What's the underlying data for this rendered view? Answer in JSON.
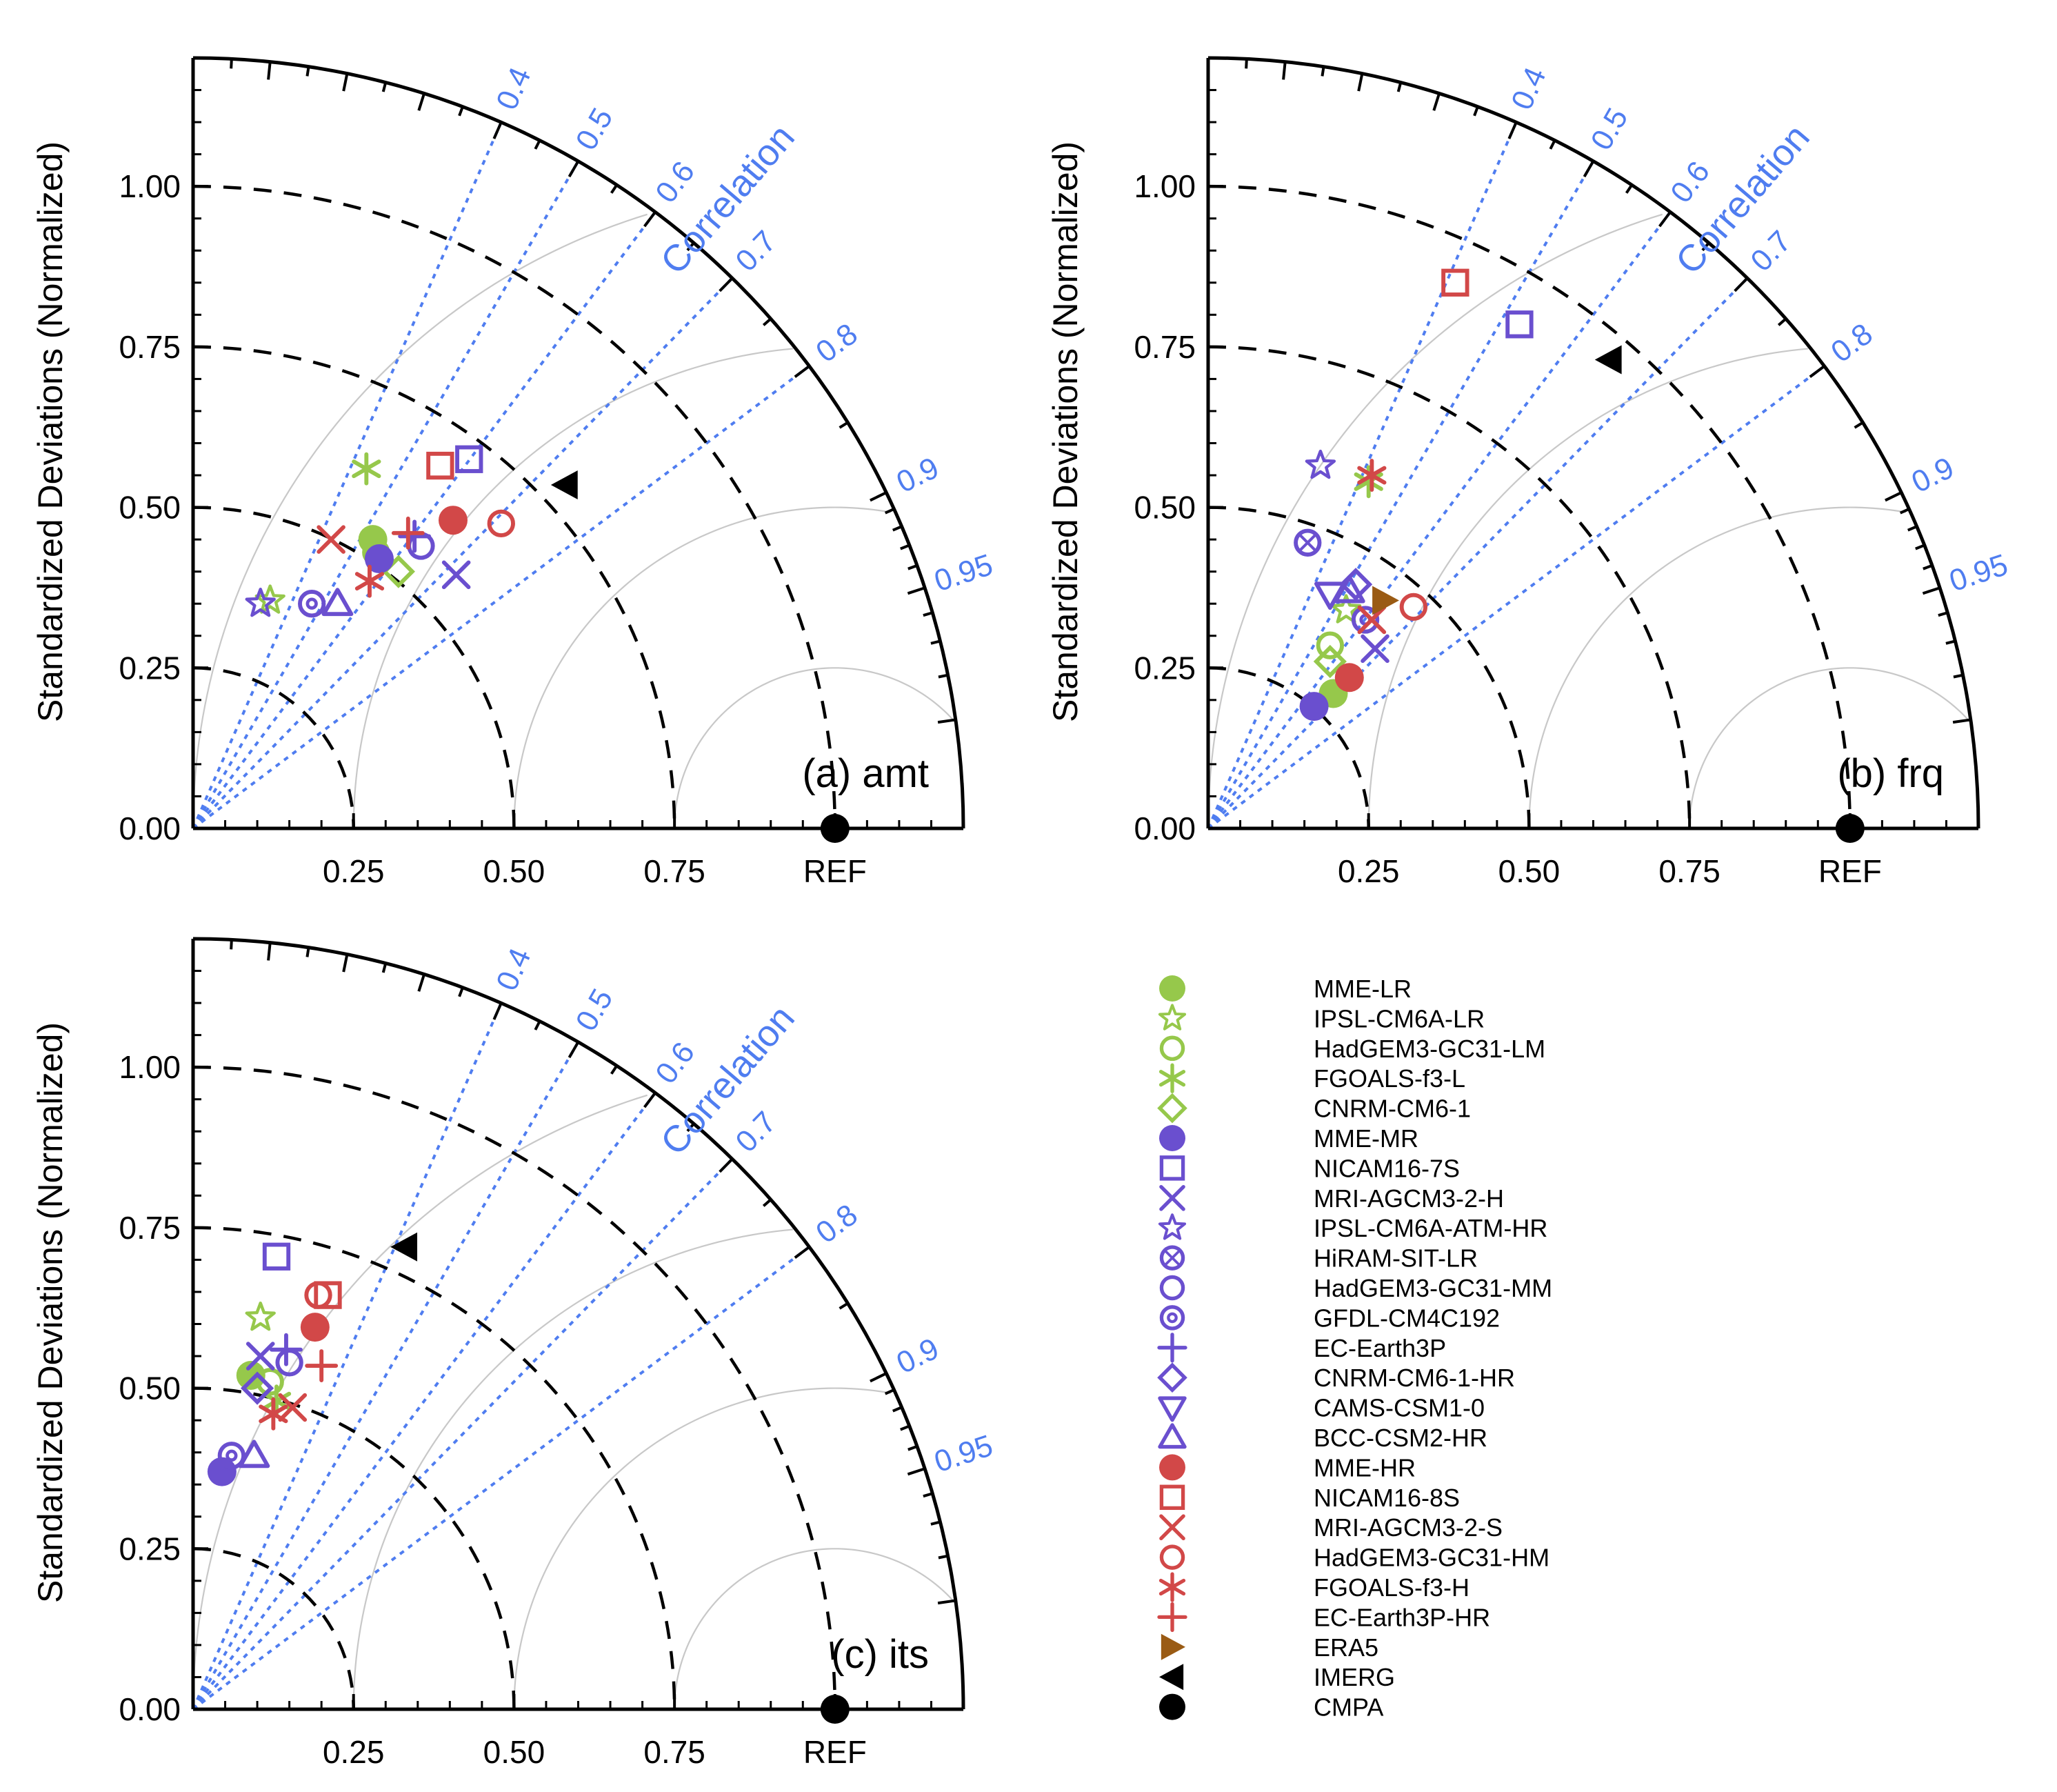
{
  "colors": {
    "green": "#96c84b",
    "purple": "#6a4fcf",
    "red": "#d24848",
    "brown": "#9a5b14",
    "black": "#000000",
    "corr_blue": "#4f7df0",
    "grid_gray": "#c8c8c8"
  },
  "chart_data": [
    {
      "type": "taylor",
      "panel_label": "(a) amt",
      "ylabel": "Standardized Deviations (Normalized)",
      "std_ticks": [
        "0.00",
        "0.25",
        "0.50",
        "0.75",
        "1.00"
      ],
      "x_ticks": [
        "0.25",
        "0.50",
        "0.75",
        "REF"
      ],
      "corr_ticks": [
        "0.4",
        "0.5",
        "0.6",
        "0.7",
        "0.8",
        "0.9",
        "0.95"
      ],
      "corr_label": "Correlation",
      "points": [
        {
          "model": "MME-LR",
          "x": 0.28,
          "y": 0.45
        },
        {
          "model": "IPSL-CM6A-LR",
          "x": 0.12,
          "y": 0.355
        },
        {
          "model": "HadGEM3-GC31-LM",
          "x": 0.285,
          "y": 0.43
        },
        {
          "model": "FGOALS-f3-L",
          "x": 0.27,
          "y": 0.56
        },
        {
          "model": "CNRM-CM6-1",
          "x": 0.32,
          "y": 0.4
        },
        {
          "model": "MME-MR",
          "x": 0.29,
          "y": 0.42
        },
        {
          "model": "NICAM16-7S",
          "x": 0.43,
          "y": 0.575
        },
        {
          "model": "MRI-AGCM3-2-H",
          "x": 0.41,
          "y": 0.395
        },
        {
          "model": "IPSL-CM6A-ATM-HR",
          "x": 0.105,
          "y": 0.35
        },
        {
          "model": "HadGEM3-GC31-MM",
          "x": 0.355,
          "y": 0.44
        },
        {
          "model": "GFDL-CM4C192",
          "x": 0.185,
          "y": 0.35
        },
        {
          "model": "EC-Earth3P",
          "x": 0.345,
          "y": 0.455
        },
        {
          "model": "BCC-CSM2-HR",
          "x": 0.225,
          "y": 0.35
        },
        {
          "model": "MME-HR",
          "x": 0.405,
          "y": 0.48
        },
        {
          "model": "NICAM16-8S",
          "x": 0.385,
          "y": 0.565
        },
        {
          "model": "MRI-AGCM3-2-S",
          "x": 0.215,
          "y": 0.45
        },
        {
          "model": "HadGEM3-GC31-HM",
          "x": 0.48,
          "y": 0.475
        },
        {
          "model": "FGOALS-f3-H",
          "x": 0.275,
          "y": 0.385
        },
        {
          "model": "EC-Earth3P-HR",
          "x": 0.335,
          "y": 0.46
        },
        {
          "model": "IMERG",
          "x": 0.58,
          "y": 0.535
        },
        {
          "model": "CMPA",
          "x": 1.0,
          "y": 0.0
        }
      ]
    },
    {
      "type": "taylor",
      "panel_label": "(b) frq",
      "ylabel": "Standardized Deviations (Normalized)",
      "std_ticks": [
        "0.00",
        "0.25",
        "0.50",
        "0.75",
        "1.00"
      ],
      "x_ticks": [
        "0.25",
        "0.50",
        "0.75",
        "REF"
      ],
      "corr_ticks": [
        "0.4",
        "0.5",
        "0.6",
        "0.7",
        "0.8",
        "0.9",
        "0.95"
      ],
      "corr_label": "Correlation",
      "points": [
        {
          "model": "MME-LR",
          "x": 0.195,
          "y": 0.21
        },
        {
          "model": "HadGEM3-GC31-LM",
          "x": 0.19,
          "y": 0.285
        },
        {
          "model": "FGOALS-f3-L",
          "x": 0.25,
          "y": 0.54
        },
        {
          "model": "CNRM-CM6-1",
          "x": 0.19,
          "y": 0.26
        },
        {
          "model": "IPSL-CM6A-LR",
          "x": 0.215,
          "y": 0.34
        },
        {
          "model": "MME-MR",
          "x": 0.165,
          "y": 0.19
        },
        {
          "model": "NICAM16-7S",
          "x": 0.485,
          "y": 0.785
        },
        {
          "model": "MRI-AGCM3-2-H",
          "x": 0.26,
          "y": 0.28
        },
        {
          "model": "IPSL-CM6A-ATM-HR",
          "x": 0.175,
          "y": 0.565
        },
        {
          "model": "HiRAM-SIT-LR",
          "x": 0.155,
          "y": 0.445
        },
        {
          "model": "GFDL-CM4C192",
          "x": 0.245,
          "y": 0.325
        },
        {
          "model": "CNRM-CM6-1-HR",
          "x": 0.23,
          "y": 0.38
        },
        {
          "model": "CAMS-CSM1-0",
          "x": 0.19,
          "y": 0.365
        },
        {
          "model": "BCC-CSM2-HR",
          "x": 0.22,
          "y": 0.37
        },
        {
          "model": "MME-HR",
          "x": 0.22,
          "y": 0.235
        },
        {
          "model": "NICAM16-8S",
          "x": 0.385,
          "y": 0.85
        },
        {
          "model": "MRI-AGCM3-2-S",
          "x": 0.255,
          "y": 0.325
        },
        {
          "model": "HadGEM3-GC31-HM",
          "x": 0.32,
          "y": 0.345
        },
        {
          "model": "FGOALS-f3-H",
          "x": 0.255,
          "y": 0.55
        },
        {
          "model": "ERA5",
          "x": 0.275,
          "y": 0.355
        },
        {
          "model": "IMERG",
          "x": 0.625,
          "y": 0.73
        },
        {
          "model": "CMPA",
          "x": 1.0,
          "y": 0.0
        }
      ]
    },
    {
      "type": "taylor",
      "panel_label": "(c) its",
      "ylabel": "Standardized Deviations (Normalized)",
      "std_ticks": [
        "0.00",
        "0.25",
        "0.50",
        "0.75",
        "1.00"
      ],
      "x_ticks": [
        "0.25",
        "0.50",
        "0.75",
        "REF"
      ],
      "corr_ticks": [
        "0.4",
        "0.5",
        "0.6",
        "0.7",
        "0.8",
        "0.9",
        "0.95"
      ],
      "corr_label": "Correlation",
      "points": [
        {
          "model": "MME-LR",
          "x": 0.09,
          "y": 0.52
        },
        {
          "model": "IPSL-CM6A-LR",
          "x": 0.105,
          "y": 0.61
        },
        {
          "model": "HadGEM3-GC31-LM",
          "x": 0.12,
          "y": 0.51
        },
        {
          "model": "FGOALS-f3-L",
          "x": 0.13,
          "y": 0.48
        },
        {
          "model": "MME-MR",
          "x": 0.045,
          "y": 0.37
        },
        {
          "model": "NICAM16-7S",
          "x": 0.13,
          "y": 0.705
        },
        {
          "model": "MRI-AGCM3-2-H",
          "x": 0.105,
          "y": 0.55
        },
        {
          "model": "GFDL-CM4C192",
          "x": 0.06,
          "y": 0.395
        },
        {
          "model": "HadGEM3-GC31-MM",
          "x": 0.15,
          "y": 0.54
        },
        {
          "model": "EC-Earth3P",
          "x": 0.145,
          "y": 0.56
        },
        {
          "model": "CNRM-CM6-1-HR",
          "x": 0.1,
          "y": 0.5
        },
        {
          "model": "BCC-CSM2-HR",
          "x": 0.095,
          "y": 0.395
        },
        {
          "model": "MME-HR",
          "x": 0.19,
          "y": 0.595
        },
        {
          "model": "NICAM16-8S",
          "x": 0.21,
          "y": 0.645
        },
        {
          "model": "HadGEM3-GC31-HM",
          "x": 0.195,
          "y": 0.645
        },
        {
          "model": "FGOALS-f3-H",
          "x": 0.125,
          "y": 0.46
        },
        {
          "model": "MRI-AGCM3-2-S",
          "x": 0.155,
          "y": 0.47
        },
        {
          "model": "EC-Earth3P-HR",
          "x": 0.2,
          "y": 0.535
        },
        {
          "model": "IMERG",
          "x": 0.33,
          "y": 0.72
        },
        {
          "model": "CMPA",
          "x": 1.0,
          "y": 0.0
        }
      ]
    }
  ],
  "legend": [
    {
      "label": "MME-LR",
      "marker": "disk",
      "color": "green"
    },
    {
      "label": "IPSL-CM6A-LR",
      "marker": "star",
      "color": "green"
    },
    {
      "label": "HadGEM3-GC31-LM",
      "marker": "circle",
      "color": "green"
    },
    {
      "label": "FGOALS-f3-L",
      "marker": "asterisk",
      "color": "green"
    },
    {
      "label": "CNRM-CM6-1",
      "marker": "diamond",
      "color": "green"
    },
    {
      "label": "MME-MR",
      "marker": "disk",
      "color": "purple"
    },
    {
      "label": "NICAM16-7S",
      "marker": "square",
      "color": "purple"
    },
    {
      "label": "MRI-AGCM3-2-H",
      "marker": "x",
      "color": "purple"
    },
    {
      "label": "IPSL-CM6A-ATM-HR",
      "marker": "star",
      "color": "purple"
    },
    {
      "label": "HiRAM-SIT-LR",
      "marker": "circle-x",
      "color": "purple"
    },
    {
      "label": "HadGEM3-GC31-MM",
      "marker": "circle",
      "color": "purple"
    },
    {
      "label": "GFDL-CM4C192",
      "marker": "circle-dot",
      "color": "purple"
    },
    {
      "label": "EC-Earth3P",
      "marker": "plus",
      "color": "purple"
    },
    {
      "label": "CNRM-CM6-1-HR",
      "marker": "diamond",
      "color": "purple"
    },
    {
      "label": "CAMS-CSM1-0",
      "marker": "tri-down",
      "color": "purple"
    },
    {
      "label": "BCC-CSM2-HR",
      "marker": "tri-up",
      "color": "purple"
    },
    {
      "label": "MME-HR",
      "marker": "disk",
      "color": "red"
    },
    {
      "label": "NICAM16-8S",
      "marker": "square",
      "color": "red"
    },
    {
      "label": "MRI-AGCM3-2-S",
      "marker": "x",
      "color": "red"
    },
    {
      "label": "HadGEM3-GC31-HM",
      "marker": "circle",
      "color": "red"
    },
    {
      "label": "FGOALS-f3-H",
      "marker": "asterisk",
      "color": "red"
    },
    {
      "label": "EC-Earth3P-HR",
      "marker": "plus",
      "color": "red"
    },
    {
      "label": "ERA5",
      "marker": "tri-right",
      "color": "brown"
    },
    {
      "label": "IMERG",
      "marker": "tri-left",
      "color": "black"
    },
    {
      "label": "CMPA",
      "marker": "disk",
      "color": "black"
    }
  ]
}
